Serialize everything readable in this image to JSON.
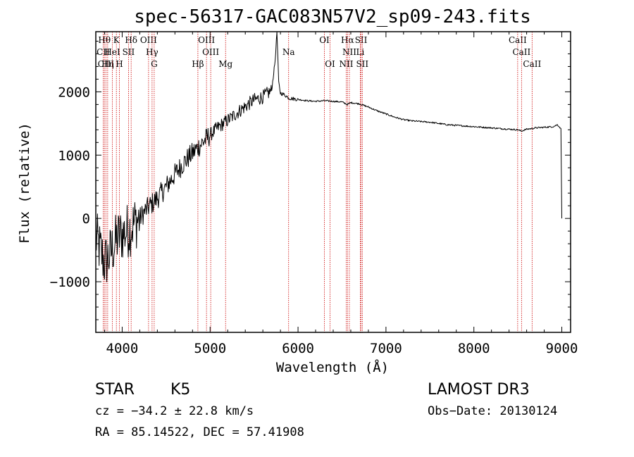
{
  "chart_data": {
    "type": "line",
    "title": "spec-56317-GAC083N57V2_sp09-243.fits",
    "xlabel": "Wavelength (Å)",
    "ylabel": "Flux (relative)",
    "xlim": [
      3700,
      9100
    ],
    "ylim": [
      -1800,
      2950
    ],
    "x_ticks": [
      4000,
      5000,
      6000,
      7000,
      8000,
      9000
    ],
    "x_tick_labels": [
      "4000",
      "5000",
      "6000",
      "7000",
      "8000",
      "9000"
    ],
    "y_ticks": [
      -1000,
      0,
      1000,
      2000
    ],
    "y_tick_labels": [
      "−1000",
      "0",
      "1000",
      "2000"
    ],
    "series": [
      {
        "name": "flux",
        "x": [
          3700,
          3750,
          3800,
          3850,
          3900,
          3950,
          4000,
          4050,
          4100,
          4150,
          4200,
          4250,
          4300,
          4350,
          4400,
          4500,
          4600,
          4700,
          4800,
          4900,
          5000,
          5100,
          5200,
          5300,
          5400,
          5500,
          5600,
          5700,
          5740,
          5760,
          5780,
          5800,
          5850,
          5900,
          6000,
          6100,
          6200,
          6300,
          6400,
          6500,
          6560,
          6600,
          6700,
          6800,
          6900,
          7000,
          7100,
          7200,
          7300,
          7400,
          7500,
          7600,
          7700,
          7800,
          7900,
          8000,
          8100,
          8200,
          8300,
          8400,
          8500,
          8540,
          8600,
          8660,
          8700,
          8800,
          8900,
          8950,
          8990,
          9000
        ],
        "y": [
          -300,
          -500,
          -700,
          -600,
          -450,
          -300,
          -250,
          -200,
          -150,
          -50,
          0,
          100,
          180,
          250,
          320,
          500,
          700,
          880,
          1030,
          1180,
          1320,
          1450,
          1550,
          1660,
          1770,
          1870,
          1920,
          2020,
          2500,
          2950,
          2150,
          1980,
          1950,
          1900,
          1880,
          1860,
          1850,
          1860,
          1850,
          1840,
          1800,
          1830,
          1810,
          1760,
          1700,
          1650,
          1600,
          1560,
          1540,
          1530,
          1520,
          1500,
          1480,
          1470,
          1460,
          1450,
          1440,
          1430,
          1420,
          1410,
          1400,
          1380,
          1410,
          1420,
          1430,
          1440,
          1450,
          1480,
          1420,
          0
        ]
      }
    ],
    "emission_lines": [
      {
        "label": "Hθ",
        "wavelength": 3798,
        "row": 1
      },
      {
        "label": "CII",
        "wavelength": 3784,
        "row": 2
      },
      {
        "label": "CIII",
        "wavelength": 3815,
        "row": 3
      },
      {
        "label": "Hη",
        "wavelength": 3835,
        "row": 3
      },
      {
        "label": "HeI",
        "wavelength": 3889,
        "row": 2
      },
      {
        "label": "K",
        "wavelength": 3934,
        "row": 1
      },
      {
        "label": "H",
        "wavelength": 3968,
        "row": 3
      },
      {
        "label": "SII",
        "wavelength": 4072,
        "row": 2
      },
      {
        "label": "Hδ",
        "wavelength": 4102,
        "row": 1
      },
      {
        "label": "OIII",
        "wavelength": 4300,
        "row": 1
      },
      {
        "label": "Hγ",
        "wavelength": 4340,
        "row": 2
      },
      {
        "label": "G",
        "wavelength": 4364,
        "row": 3
      },
      {
        "label": "Hβ",
        "wavelength": 4861,
        "row": 3
      },
      {
        "label": "OIII",
        "wavelength": 4959,
        "row": 1
      },
      {
        "label": "OIII",
        "wavelength": 5007,
        "row": 2
      },
      {
        "label": "Mg",
        "wavelength": 5176,
        "row": 3
      },
      {
        "label": "Na",
        "wavelength": 5893,
        "row": 2
      },
      {
        "label": "OI",
        "wavelength": 6300,
        "row": 1
      },
      {
        "label": "OI",
        "wavelength": 6364,
        "row": 3
      },
      {
        "label": "Hα",
        "wavelength": 6563,
        "row": 1
      },
      {
        "label": "NII",
        "wavelength": 6584,
        "row": 2
      },
      {
        "label": "NII",
        "wavelength": 6548,
        "row": 3
      },
      {
        "label": "SII",
        "wavelength": 6717,
        "row": 1
      },
      {
        "label": "Li",
        "wavelength": 6708,
        "row": 2
      },
      {
        "label": "SII",
        "wavelength": 6731,
        "row": 3
      },
      {
        "label": "CaII",
        "wavelength": 8498,
        "row": 1
      },
      {
        "label": "CaII",
        "wavelength": 8542,
        "row": 2
      },
      {
        "label": "CaII",
        "wavelength": 8662,
        "row": 3
      }
    ],
    "line_color": "#000000",
    "marker_color": "#cc0000"
  },
  "info": {
    "object_class": "STAR",
    "subclass": "K5",
    "survey": "LAMOST DR3",
    "redshift_text": "cz = −34.2 ± 22.8 km/s",
    "obs_date_text": "Obs−Date: 20130124",
    "coords_text": "RA =  85.14522, DEC =  57.41908"
  }
}
